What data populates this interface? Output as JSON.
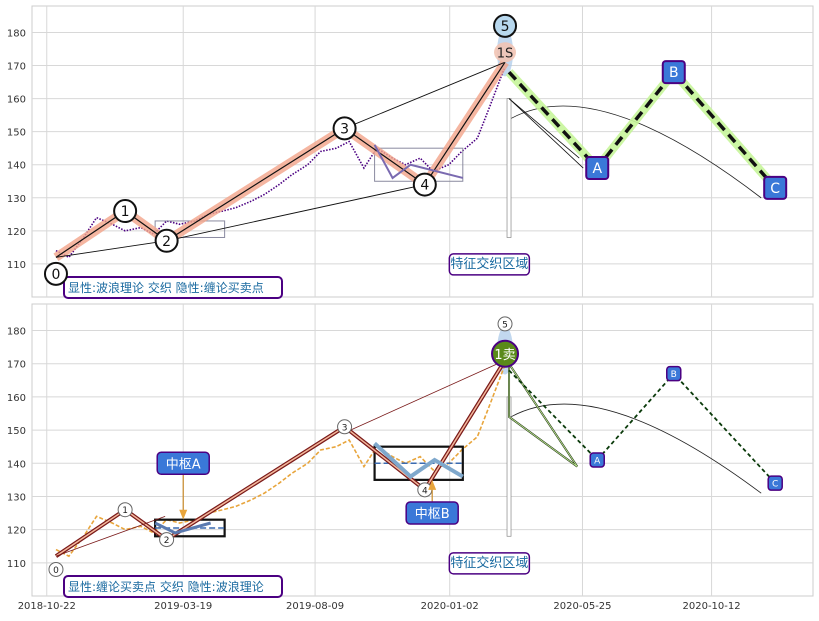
{
  "chart_data": [
    {
      "type": "line",
      "panel": "top",
      "annotation_box": "显性:波浪理论 交织 隐性:缠论买卖点",
      "region_label": "特征交织区域",
      "ylim": [
        100,
        188
      ],
      "yticks": [
        110,
        120,
        130,
        140,
        150,
        160,
        170,
        180
      ],
      "grid": true,
      "price_color": "#4b0082",
      "price_style": "dotted",
      "price_x": [
        "2018-11-01",
        "2018-11-15",
        "2018-12-01",
        "2018-12-15",
        "2019-01-01",
        "2019-01-15",
        "2019-02-01",
        "2019-02-15",
        "2019-03-01",
        "2019-03-15",
        "2019-04-01",
        "2019-04-15",
        "2019-05-01",
        "2019-05-15",
        "2019-06-01",
        "2019-06-15",
        "2019-07-01",
        "2019-07-15",
        "2019-08-01",
        "2019-08-15",
        "2019-09-01",
        "2019-09-15",
        "2019-10-01",
        "2019-10-15",
        "2019-11-01",
        "2019-11-15",
        "2019-12-01",
        "2019-12-15",
        "2020-01-01",
        "2020-01-15",
        "2020-02-01",
        "2020-02-15",
        "2020-03-01"
      ],
      "price_y": [
        114,
        112,
        118,
        124,
        122,
        120,
        121,
        119,
        123,
        122,
        123,
        125,
        126,
        127,
        129,
        131,
        134,
        137,
        140,
        144,
        145,
        147,
        139,
        145,
        142,
        140,
        142,
        138,
        140,
        144,
        148,
        158,
        169
      ],
      "wave_points": [
        {
          "label": "0",
          "x": "2018-11-01",
          "y": 107
        },
        {
          "label": "1",
          "x": "2019-01-15",
          "y": 126
        },
        {
          "label": "2",
          "x": "2019-03-01",
          "y": 117
        },
        {
          "label": "3",
          "x": "2019-09-10",
          "y": 151
        },
        {
          "label": "4",
          "x": "2019-12-06",
          "y": 134
        },
        {
          "label": "5",
          "x": "2020-03-02",
          "y": 182
        },
        {
          "label": "1S",
          "x": "2020-03-02",
          "y": 174
        }
      ],
      "abc_points": [
        {
          "label": "A",
          "x": "2020-06-10",
          "y": 139
        },
        {
          "label": "B",
          "x": "2020-09-01",
          "y": 168
        },
        {
          "label": "C",
          "x": "2020-12-20",
          "y": 133
        }
      ]
    },
    {
      "type": "line",
      "panel": "bottom",
      "annotation_box": "显性:缠论买卖点 交织 隐性:波浪理论",
      "region_label": "特征交织区域",
      "zhongshu_labels": [
        "中枢A",
        "中枢B"
      ],
      "sell_label": "1卖",
      "ylim": [
        100,
        188
      ],
      "yticks": [
        110,
        120,
        130,
        140,
        150,
        160,
        170,
        180
      ],
      "grid": true,
      "price_color": "#e8a53c",
      "price_style": "dashed",
      "xticks": [
        "2018-10-22",
        "2019-03-19",
        "2019-08-09",
        "2020-01-02",
        "2020-05-25",
        "2020-10-12"
      ],
      "price_x": [
        "2018-11-01",
        "2018-11-15",
        "2018-12-01",
        "2018-12-15",
        "2019-01-01",
        "2019-01-15",
        "2019-02-01",
        "2019-02-15",
        "2019-03-01",
        "2019-03-15",
        "2019-04-01",
        "2019-04-15",
        "2019-05-01",
        "2019-05-15",
        "2019-06-01",
        "2019-06-15",
        "2019-07-01",
        "2019-07-15",
        "2019-08-01",
        "2019-08-15",
        "2019-09-01",
        "2019-09-15",
        "2019-10-01",
        "2019-10-15",
        "2019-11-01",
        "2019-11-15",
        "2019-12-01",
        "2019-12-15",
        "2020-01-01",
        "2020-01-15",
        "2020-02-01",
        "2020-02-15",
        "2020-03-01"
      ],
      "price_y": [
        114,
        112,
        118,
        124,
        122,
        120,
        121,
        119,
        123,
        122,
        123,
        125,
        126,
        127,
        129,
        131,
        134,
        137,
        140,
        144,
        145,
        147,
        139,
        145,
        142,
        140,
        142,
        138,
        140,
        144,
        148,
        158,
        169
      ],
      "wave_points": [
        {
          "label": "0",
          "x": "2018-11-01",
          "y": 108
        },
        {
          "label": "1",
          "x": "2019-01-15",
          "y": 126
        },
        {
          "label": "2",
          "x": "2019-03-01",
          "y": 117
        },
        {
          "label": "3",
          "x": "2019-09-10",
          "y": 151
        },
        {
          "label": "4",
          "x": "2019-12-06",
          "y": 132
        },
        {
          "label": "5",
          "x": "2020-03-02",
          "y": 182
        }
      ],
      "abc_points": [
        {
          "label": "A",
          "x": "2020-06-10",
          "y": 141
        },
        {
          "label": "B",
          "x": "2020-09-01",
          "y": 167
        },
        {
          "label": "C",
          "x": "2020-12-20",
          "y": 134
        }
      ]
    }
  ]
}
